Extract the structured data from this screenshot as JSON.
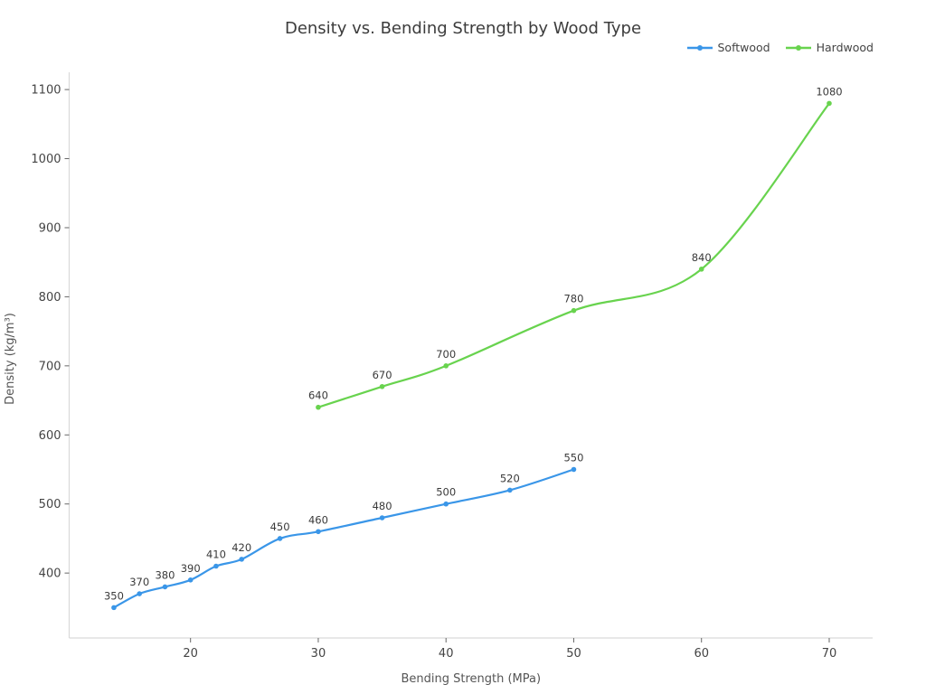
{
  "title": "Density vs. Bending Strength by Wood Type",
  "chart_data": {
    "type": "line",
    "title": "Density vs. Bending Strength by Wood Type",
    "xlabel": "Bending Strength (MPa)",
    "ylabel": "Density (kg/m³)",
    "x_ticks": [
      20,
      30,
      40,
      50,
      60,
      70
    ],
    "y_ticks": [
      400,
      500,
      600,
      700,
      800,
      900,
      1000,
      1100
    ],
    "x_range": [
      10.5,
      73.4
    ],
    "y_range": [
      306,
      1125
    ],
    "grid": false,
    "legend_position": "top-right",
    "line_shape": "spline",
    "point_labels_shown": true,
    "axis_line_color": "#d9d9d9",
    "tick_color": "#666666",
    "series": [
      {
        "name": "Softwood",
        "color": "#3a96e8",
        "x": [
          14,
          16,
          18,
          20,
          22,
          24,
          27,
          30,
          35,
          40,
          45,
          50
        ],
        "y": [
          350,
          370,
          380,
          390,
          410,
          420,
          450,
          460,
          480,
          500,
          520,
          550
        ]
      },
      {
        "name": "Hardwood",
        "color": "#68d34e",
        "x": [
          30,
          35,
          40,
          50,
          60,
          70
        ],
        "y": [
          640,
          670,
          700,
          780,
          840,
          1080
        ]
      }
    ]
  }
}
